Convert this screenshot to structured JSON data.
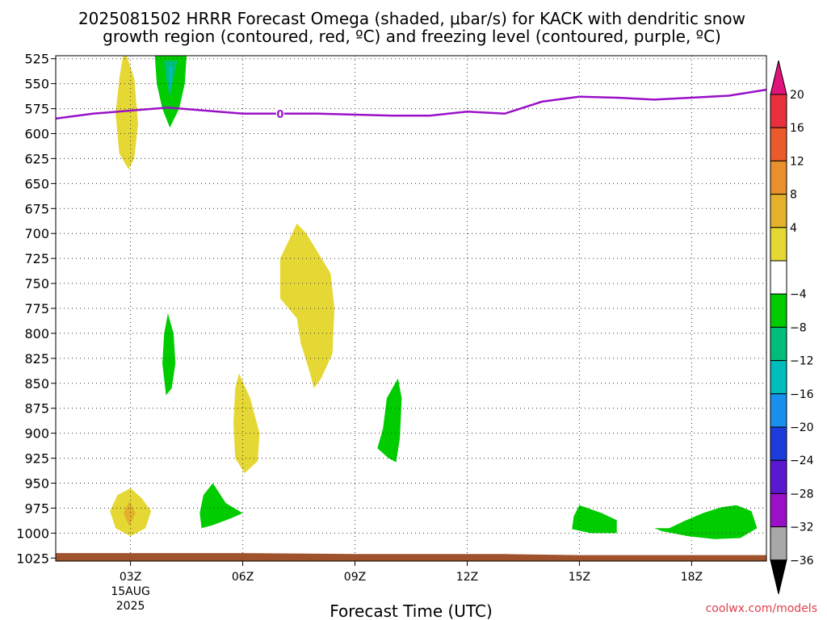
{
  "title": {
    "line1": "2025081502 HRRR Forecast Omega (shaded, μbar/s) for KACK with dendritic snow",
    "line2": "growth region (contoured, red, ºC) and freezing level (contoured, purple, ºC)"
  },
  "credit": "coolwx.com/models",
  "chart_data": {
    "type": "heatmap",
    "title": "2025081502 HRRR Forecast Omega (shaded, μbar/s) for KACK with dendritic snow growth region (contoured, red, ºC) and freezing level (contoured, purple, ºC)",
    "xlabel": "Forecast Time (UTC)",
    "ylabel": "",
    "x_range_hours_utc": [
      1.0,
      20.0
    ],
    "y_range_hpa": [
      522,
      1028
    ],
    "y_inverted": true,
    "grid": true,
    "x_ticks": [
      {
        "hour": 3,
        "label": "03Z",
        "date": "15AUG",
        "year": "2025"
      },
      {
        "hour": 6,
        "label": "06Z"
      },
      {
        "hour": 9,
        "label": "09Z"
      },
      {
        "hour": 12,
        "label": "12Z"
      },
      {
        "hour": 15,
        "label": "15Z"
      },
      {
        "hour": 18,
        "label": "18Z"
      }
    ],
    "y_ticks": [
      525,
      550,
      575,
      600,
      625,
      650,
      675,
      700,
      725,
      750,
      775,
      800,
      825,
      850,
      875,
      900,
      925,
      950,
      975,
      1000,
      1025
    ],
    "colorbar": {
      "labels": [
        "20",
        "16",
        "12",
        "8",
        "4",
        "−4",
        "−8",
        "−12",
        "−16",
        "−20",
        "−24",
        "−28",
        "−32",
        "−36"
      ],
      "bins": [
        {
          "color": "#e0137a",
          "kind": "over"
        },
        {
          "color": "#e8303c"
        },
        {
          "color": "#ea5a2a"
        },
        {
          "color": "#e8902c"
        },
        {
          "color": "#e3b12b"
        },
        {
          "color": "#e6d834"
        },
        {
          "color": "#ffffff"
        },
        {
          "color": "#00cc00"
        },
        {
          "color": "#00be7a"
        },
        {
          "color": "#00bcbc"
        },
        {
          "color": "#1a90ee"
        },
        {
          "color": "#1c3cdc"
        },
        {
          "color": "#5a18d0"
        },
        {
          "color": "#9a10c8"
        },
        {
          "color": "#a8a8a8"
        },
        {
          "color": "#000000",
          "kind": "under"
        }
      ]
    },
    "freezing_level": {
      "label": "0",
      "color": "#9a10c8",
      "points": [
        [
          1.0,
          585
        ],
        [
          2.0,
          580
        ],
        [
          3.0,
          577
        ],
        [
          4.0,
          574
        ],
        [
          5.0,
          577
        ],
        [
          6.0,
          580
        ],
        [
          7.0,
          580
        ],
        [
          8.0,
          580
        ],
        [
          9.0,
          581
        ],
        [
          10.0,
          582
        ],
        [
          11.0,
          582
        ],
        [
          12.0,
          578
        ],
        [
          12.5,
          579
        ],
        [
          13.0,
          580
        ],
        [
          14.0,
          568
        ],
        [
          15.0,
          563
        ],
        [
          16.0,
          564
        ],
        [
          17.0,
          566
        ],
        [
          18.0,
          564
        ],
        [
          19.0,
          562
        ],
        [
          20.0,
          556
        ]
      ]
    },
    "terrain": {
      "color": "#a0522d",
      "points": [
        [
          1.0,
          1020
        ],
        [
          6.0,
          1020
        ],
        [
          9.0,
          1021
        ],
        [
          13.0,
          1021
        ],
        [
          15.0,
          1022
        ],
        [
          20.0,
          1022
        ]
      ]
    },
    "omega_regions": [
      {
        "value_bin": "4 to 8",
        "color": "#e6d834",
        "points": [
          [
            2.9,
            522
          ],
          [
            3.1,
            545
          ],
          [
            3.2,
            590
          ],
          [
            3.1,
            625
          ],
          [
            2.95,
            636
          ],
          [
            2.7,
            620
          ],
          [
            2.6,
            580
          ],
          [
            2.7,
            545
          ],
          [
            2.8,
            522
          ]
        ]
      },
      {
        "value_bin": "-8 to -4",
        "color": "#00cc00",
        "points": [
          [
            3.65,
            522
          ],
          [
            4.5,
            522
          ],
          [
            4.45,
            550
          ],
          [
            4.3,
            575
          ],
          [
            4.05,
            594
          ],
          [
            3.85,
            575
          ],
          [
            3.7,
            550
          ],
          [
            3.65,
            522
          ]
        ]
      },
      {
        "value_bin": "-12 to -8",
        "color": "#00be7a",
        "points": [
          [
            3.9,
            527
          ],
          [
            4.25,
            527
          ],
          [
            4.15,
            545
          ],
          [
            4.05,
            563
          ],
          [
            3.95,
            545
          ]
        ]
      },
      {
        "value_bin": "-16 to -12",
        "color": "#00bcbc",
        "points": [
          [
            4.03,
            533
          ],
          [
            4.12,
            533
          ],
          [
            4.1,
            545
          ],
          [
            4.07,
            558
          ],
          [
            4.04,
            545
          ]
        ]
      },
      {
        "value_bin": "-8 to -4",
        "color": "#00cc00",
        "points": [
          [
            4.0,
            780
          ],
          [
            4.15,
            800
          ],
          [
            4.2,
            830
          ],
          [
            4.1,
            855
          ],
          [
            3.95,
            862
          ],
          [
            3.85,
            830
          ],
          [
            3.9,
            800
          ]
        ]
      },
      {
        "value_bin": "4 to 8",
        "color": "#e6d834",
        "points": [
          [
            7.45,
            690
          ],
          [
            7.7,
            700
          ],
          [
            8.35,
            740
          ],
          [
            8.45,
            775
          ],
          [
            8.4,
            820
          ],
          [
            8.1,
            845
          ],
          [
            7.9,
            855
          ],
          [
            7.8,
            840
          ],
          [
            7.55,
            810
          ],
          [
            7.45,
            785
          ],
          [
            7.0,
            765
          ],
          [
            7.0,
            725
          ]
        ]
      },
      {
        "value_bin": "4 to 8",
        "color": "#e6d834",
        "points": [
          [
            5.9,
            840
          ],
          [
            6.2,
            865
          ],
          [
            6.45,
            900
          ],
          [
            6.4,
            928
          ],
          [
            6.05,
            940
          ],
          [
            5.8,
            925
          ],
          [
            5.75,
            890
          ],
          [
            5.8,
            855
          ]
        ]
      },
      {
        "value_bin": "-8 to -4",
        "color": "#00cc00",
        "points": [
          [
            10.15,
            845
          ],
          [
            10.25,
            865
          ],
          [
            10.2,
            905
          ],
          [
            10.1,
            929
          ],
          [
            9.9,
            925
          ],
          [
            9.6,
            915
          ],
          [
            9.75,
            895
          ],
          [
            9.85,
            865
          ]
        ]
      },
      {
        "value_bin": "4 to 8",
        "color": "#e6d834",
        "points": [
          [
            3.0,
            955
          ],
          [
            3.3,
            965
          ],
          [
            3.55,
            978
          ],
          [
            3.4,
            995
          ],
          [
            3.0,
            1003
          ],
          [
            2.6,
            995
          ],
          [
            2.45,
            978
          ],
          [
            2.65,
            962
          ]
        ]
      },
      {
        "value_bin": "8 to 12",
        "color": "#e3b12b",
        "points": [
          [
            2.97,
            968
          ],
          [
            3.13,
            980
          ],
          [
            2.97,
            993
          ],
          [
            2.81,
            980
          ]
        ]
      },
      {
        "value_bin": "-8 to -4",
        "color": "#00cc00",
        "points": [
          [
            5.2,
            950
          ],
          [
            5.55,
            970
          ],
          [
            6.0,
            980
          ],
          [
            5.7,
            985
          ],
          [
            5.2,
            992
          ],
          [
            4.9,
            995
          ],
          [
            4.85,
            980
          ],
          [
            4.95,
            962
          ]
        ]
      },
      {
        "value_bin": "-8 to -4",
        "color": "#00cc00",
        "points": [
          [
            15.0,
            972
          ],
          [
            15.6,
            980
          ],
          [
            16.0,
            987
          ],
          [
            16.0,
            1000
          ],
          [
            15.3,
            1000
          ],
          [
            14.8,
            996
          ],
          [
            14.85,
            983
          ]
        ]
      },
      {
        "value_bin": "-8 to -4",
        "color": "#00cc00",
        "points": [
          [
            17.0,
            995
          ],
          [
            17.4,
            995
          ],
          [
            17.8,
            988
          ],
          [
            18.3,
            980
          ],
          [
            18.8,
            974
          ],
          [
            19.2,
            972
          ],
          [
            19.6,
            978
          ],
          [
            19.75,
            995
          ],
          [
            19.3,
            1005
          ],
          [
            18.6,
            1006
          ],
          [
            17.9,
            1003
          ],
          [
            17.2,
            998
          ]
        ]
      }
    ]
  }
}
